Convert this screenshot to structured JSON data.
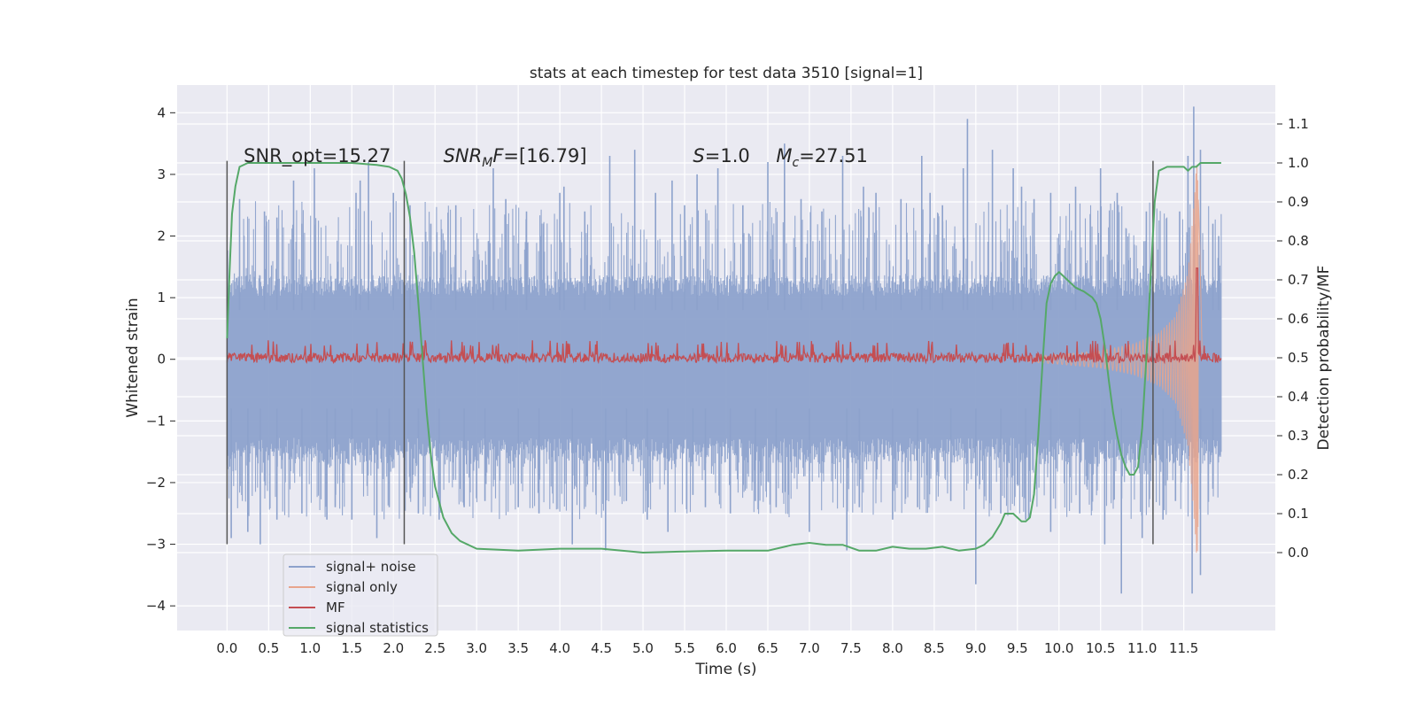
{
  "chart_data": {
    "type": "line",
    "title": "stats at each timestep for test data 3510 [signal=1]",
    "xlabel": "Time (s)",
    "ylabel_left": "Whitened strain",
    "ylabel_right": "Detection probability/MF",
    "xlim": [
      -0.6,
      12.6
    ],
    "ylim_left": [
      -4.4,
      4.45
    ],
    "ylim_right": [
      -0.2,
      1.2
    ],
    "x_ticks": [
      0.0,
      0.5,
      1.0,
      1.5,
      2.0,
      2.5,
      3.0,
      3.5,
      4.0,
      4.5,
      5.0,
      5.5,
      6.0,
      6.5,
      7.0,
      7.5,
      8.0,
      8.5,
      9.0,
      9.5,
      10.0,
      10.5,
      11.0,
      11.5
    ],
    "x_tick_labels": [
      "0.0",
      "0.5",
      "1.0",
      "1.5",
      "2.0",
      "2.5",
      "3.0",
      "3.5",
      "4.0",
      "4.5",
      "5.0",
      "5.5",
      "6.0",
      "6.5",
      "7.0",
      "7.5",
      "8.0",
      "8.5",
      "9.0",
      "9.5",
      "10.0",
      "10.5",
      "11.0",
      "11.5"
    ],
    "y_left_ticks": [
      4,
      3,
      2,
      1,
      0,
      -1,
      -2,
      -3,
      -4
    ],
    "y_left_tick_labels": [
      "4",
      "3",
      "2",
      "1",
      "0",
      "−1",
      "−2",
      "−3",
      "−4"
    ],
    "y_right_ticks": [
      1.1,
      1.0,
      0.9,
      0.8,
      0.7,
      0.6,
      0.5,
      0.4,
      0.3,
      0.2,
      0.1,
      0.0
    ],
    "y_right_tick_labels": [
      "1.1",
      "1.0",
      "0.9",
      "0.8",
      "0.7",
      "0.6",
      "0.5",
      "0.4",
      "0.3",
      "0.2",
      "0.1",
      "0.0"
    ],
    "grid": true,
    "legend_position": "lower-left",
    "annotations": [
      {
        "text": "SNR_opt=15.27",
        "x": 0.2,
        "y": 3.2
      },
      {
        "text": "SNR",
        "sub": "M",
        "tail": "F=[16.79]",
        "x": 2.6,
        "y": 3.2
      },
      {
        "text": "S",
        "tail": "=1.0",
        "x": 5.6,
        "y": 3.2
      },
      {
        "text": "M",
        "sub": "c",
        "tail": "=27.51",
        "x": 6.6,
        "y": 3.2
      }
    ],
    "vertical_markers": {
      "x": [
        0.0,
        2.13,
        11.13
      ],
      "y_range_left": [
        -3.0,
        3.22
      ],
      "color": "#555555"
    },
    "series": [
      {
        "name": "signal+ noise",
        "color": "#8da2cc",
        "axis": "left",
        "x_range": [
          0.0,
          11.95
        ],
        "band": [
          -1.7,
          1.37
        ],
        "peak_samples": [
          [
            0.15,
            2.6
          ],
          [
            0.45,
            2.4
          ],
          [
            0.6,
            2.3
          ],
          [
            0.8,
            2.9
          ],
          [
            0.9,
            2.2
          ],
          [
            1.05,
            3.1
          ],
          [
            1.55,
            2.7
          ],
          [
            1.6,
            2.9
          ],
          [
            1.7,
            3.2
          ],
          [
            2.0,
            2.7
          ],
          [
            2.2,
            2.5
          ],
          [
            2.45,
            2.2
          ],
          [
            2.75,
            2.5
          ],
          [
            3.2,
            3.1
          ],
          [
            3.35,
            2.6
          ],
          [
            3.6,
            2.4
          ],
          [
            4.0,
            2.7
          ],
          [
            4.05,
            2.8
          ],
          [
            4.3,
            2.4
          ],
          [
            4.6,
            3.3
          ],
          [
            4.9,
            3.4
          ],
          [
            5.15,
            2.7
          ],
          [
            5.35,
            2.9
          ],
          [
            5.5,
            2.5
          ],
          [
            5.65,
            3.0
          ],
          [
            5.9,
            3.1
          ],
          [
            6.2,
            2.5
          ],
          [
            6.5,
            3.2
          ],
          [
            6.7,
            3.5
          ],
          [
            6.9,
            2.6
          ],
          [
            7.15,
            2.4
          ],
          [
            7.4,
            3.3
          ],
          [
            7.65,
            2.8
          ],
          [
            7.8,
            2.7
          ],
          [
            8.1,
            2.6
          ],
          [
            8.35,
            3.3
          ],
          [
            8.45,
            2.7
          ],
          [
            8.6,
            2.5
          ],
          [
            8.85,
            3.1
          ],
          [
            8.9,
            3.9
          ],
          [
            9.2,
            3.4
          ],
          [
            9.45,
            3.1
          ],
          [
            9.55,
            2.8
          ],
          [
            9.7,
            2.6
          ],
          [
            9.9,
            2.7
          ],
          [
            10.2,
            2.8
          ],
          [
            10.5,
            3.1
          ],
          [
            10.7,
            2.7
          ],
          [
            11.05,
            2.4
          ],
          [
            11.45,
            2.4
          ],
          [
            11.55,
            3.3
          ],
          [
            11.62,
            4.1
          ],
          [
            11.7,
            3.4
          ],
          [
            11.85,
            2.2
          ],
          [
            11.92,
            2.0
          ]
        ],
        "trough_samples": [
          [
            0.05,
            -2.9
          ],
          [
            0.25,
            -2.8
          ],
          [
            0.4,
            -3.0
          ],
          [
            0.6,
            -2.6
          ],
          [
            0.9,
            -2.5
          ],
          [
            1.2,
            -2.6
          ],
          [
            1.3,
            -2.4
          ],
          [
            1.5,
            -2.6
          ],
          [
            1.8,
            -2.9
          ],
          [
            1.95,
            -2.4
          ],
          [
            2.3,
            -2.5
          ],
          [
            2.55,
            -2.6
          ],
          [
            2.85,
            -2.4
          ],
          [
            3.1,
            -2.3
          ],
          [
            3.5,
            -2.4
          ],
          [
            3.75,
            -2.5
          ],
          [
            4.15,
            -3.0
          ],
          [
            4.55,
            -3.1
          ],
          [
            4.8,
            -2.3
          ],
          [
            5.05,
            -2.6
          ],
          [
            5.3,
            -2.8
          ],
          [
            5.6,
            -2.2
          ],
          [
            5.75,
            -2.4
          ],
          [
            6.05,
            -2.5
          ],
          [
            6.35,
            -2.3
          ],
          [
            6.6,
            -2.4
          ],
          [
            7.0,
            -2.8
          ],
          [
            7.45,
            -3.1
          ],
          [
            7.6,
            -2.4
          ],
          [
            8.0,
            -2.6
          ],
          [
            8.3,
            -2.4
          ],
          [
            8.7,
            -2.3
          ],
          [
            9.0,
            -3.65
          ],
          [
            9.3,
            -2.5
          ],
          [
            9.6,
            -2.6
          ],
          [
            9.9,
            -2.8
          ],
          [
            10.25,
            -2.5
          ],
          [
            10.55,
            -3.0
          ],
          [
            10.75,
            -3.8
          ],
          [
            11.0,
            -2.9
          ],
          [
            11.25,
            -2.6
          ],
          [
            11.4,
            -2.3
          ],
          [
            11.6,
            -3.8
          ],
          [
            11.7,
            -3.5
          ],
          [
            11.85,
            -2.1
          ]
        ]
      },
      {
        "name": "signal only",
        "color": "#e8a48c",
        "axis": "left",
        "x_range": [
          9.6,
          11.72
        ],
        "envelope_samples": [
          [
            9.6,
            0.04
          ],
          [
            10.0,
            0.08
          ],
          [
            10.5,
            0.14
          ],
          [
            10.9,
            0.25
          ],
          [
            11.2,
            0.42
          ],
          [
            11.4,
            0.7
          ],
          [
            11.55,
            1.4
          ],
          [
            11.62,
            2.5
          ],
          [
            11.66,
            3.3
          ],
          [
            11.69,
            2.0
          ],
          [
            11.72,
            0.1
          ]
        ]
      },
      {
        "name": "MF",
        "color": "#c44e52",
        "axis": "right",
        "x_range": [
          0.0,
          11.95
        ],
        "baseline": 0.5,
        "noise": [
          0.48,
          0.53
        ],
        "spike": [
          11.66,
          0.73
        ]
      },
      {
        "name": "signal statistics",
        "color": "#55a868",
        "axis": "right",
        "x": [
          0.0,
          0.03,
          0.06,
          0.1,
          0.15,
          0.25,
          0.5,
          1.0,
          1.5,
          1.8,
          1.95,
          2.05,
          2.1,
          2.15,
          2.2,
          2.25,
          2.3,
          2.35,
          2.4,
          2.45,
          2.5,
          2.6,
          2.7,
          2.8,
          3.0,
          3.5,
          4.0,
          4.5,
          5.0,
          5.5,
          6.0,
          6.5,
          6.8,
          7.0,
          7.2,
          7.4,
          7.6,
          7.8,
          8.0,
          8.2,
          8.4,
          8.6,
          8.8,
          9.0,
          9.1,
          9.2,
          9.3,
          9.35,
          9.45,
          9.55,
          9.6,
          9.65,
          9.7,
          9.75,
          9.8,
          9.85,
          9.9,
          9.95,
          10.0,
          10.05,
          10.1,
          10.2,
          10.3,
          10.4,
          10.45,
          10.5,
          10.55,
          10.6,
          10.65,
          10.7,
          10.75,
          10.8,
          10.85,
          10.9,
          10.95,
          11.0,
          11.05,
          11.1,
          11.15,
          11.2,
          11.3,
          11.4,
          11.5,
          11.55,
          11.6,
          11.65,
          11.7,
          11.8,
          11.9,
          11.95
        ],
        "y": [
          0.55,
          0.72,
          0.87,
          0.94,
          0.99,
          1.0,
          1.0,
          1.0,
          1.0,
          0.995,
          0.99,
          0.98,
          0.96,
          0.92,
          0.86,
          0.77,
          0.64,
          0.5,
          0.36,
          0.25,
          0.17,
          0.09,
          0.05,
          0.03,
          0.01,
          0.005,
          0.01,
          0.01,
          0.0,
          0.003,
          0.005,
          0.005,
          0.02,
          0.025,
          0.02,
          0.02,
          0.005,
          0.005,
          0.015,
          0.01,
          0.01,
          0.015,
          0.005,
          0.01,
          0.02,
          0.04,
          0.075,
          0.1,
          0.1,
          0.08,
          0.08,
          0.09,
          0.15,
          0.3,
          0.48,
          0.64,
          0.69,
          0.71,
          0.72,
          0.71,
          0.7,
          0.68,
          0.67,
          0.655,
          0.64,
          0.6,
          0.53,
          0.44,
          0.36,
          0.3,
          0.25,
          0.22,
          0.2,
          0.2,
          0.22,
          0.32,
          0.5,
          0.7,
          0.9,
          0.98,
          0.99,
          0.99,
          0.99,
          0.98,
          0.99,
          0.99,
          1.0,
          1.0,
          1.0,
          1.0
        ]
      }
    ]
  }
}
